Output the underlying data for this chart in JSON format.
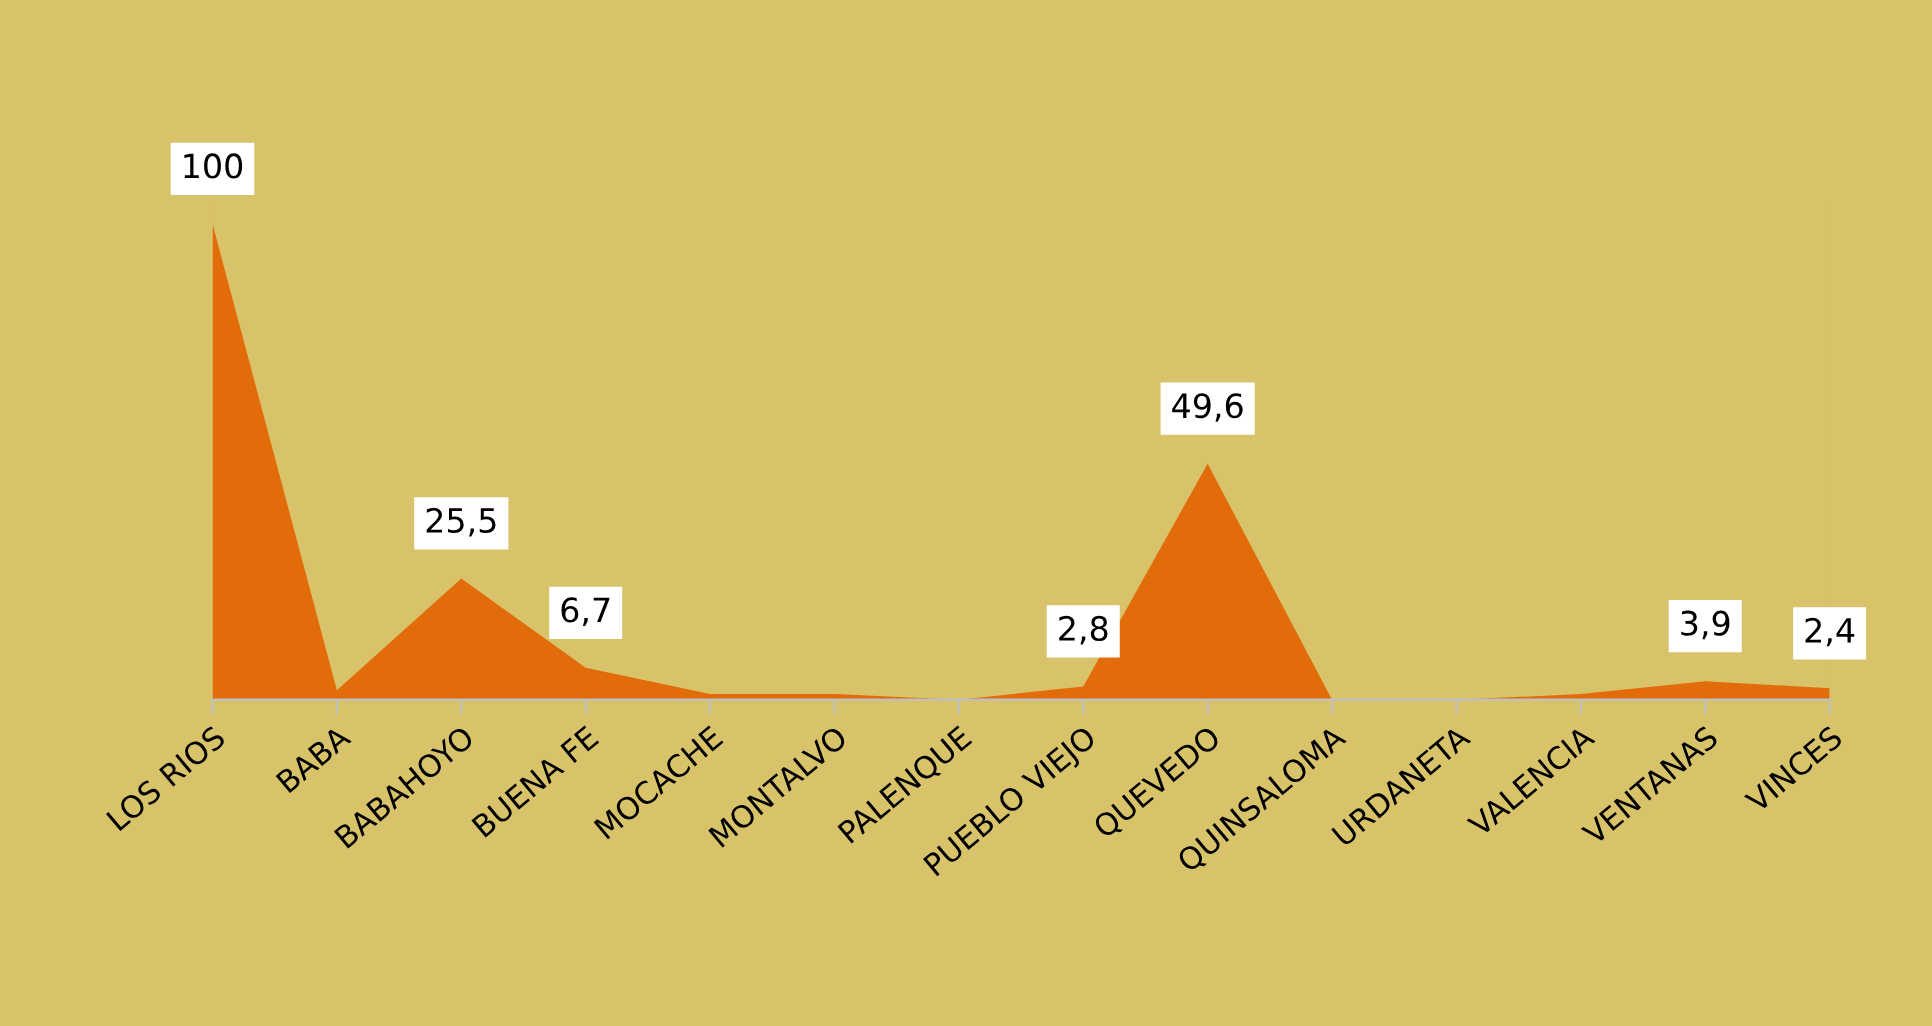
{
  "chart_data": {
    "type": "area",
    "categories": [
      "LOS RIOS",
      "BABA",
      "BABAHOYO",
      "BUENA FE",
      "MOCACHE",
      "MONTALVO",
      "PALENQUE",
      "PUEBLO VIEJO",
      "QUEVEDO",
      "QUINSALOMA",
      "URDANETA",
      "VALENCIA",
      "VENTANAS",
      "VINCES"
    ],
    "series": [
      {
        "color": "#e36c0a",
        "values": [
          100,
          2,
          25.5,
          6.7,
          1.2,
          1.2,
          0,
          2.8,
          49.6,
          0,
          0,
          1.2,
          3.9,
          2.4
        ],
        "value_labels": [
          "100",
          null,
          "25,5",
          "6,7",
          null,
          null,
          null,
          "2,8",
          "49,6",
          null,
          null,
          null,
          "3,9",
          "2,4"
        ]
      }
    ],
    "grid": false,
    "legend": false
  }
}
